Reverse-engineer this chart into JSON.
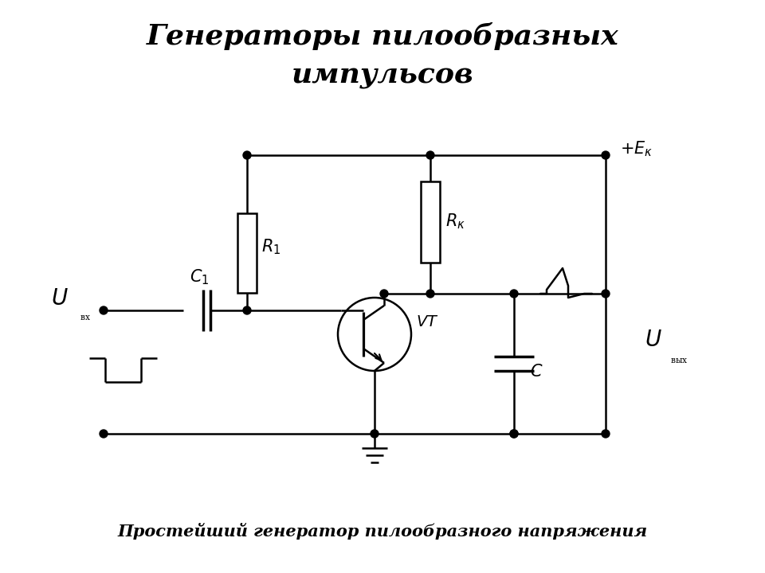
{
  "title_line1": "Генераторы пилообразных",
  "title_line2": "импульсов",
  "subtitle": "Простейший генератор пилообразного напряжения",
  "bg_color": "#ffffff",
  "line_color": "#000000",
  "lw": 1.8
}
